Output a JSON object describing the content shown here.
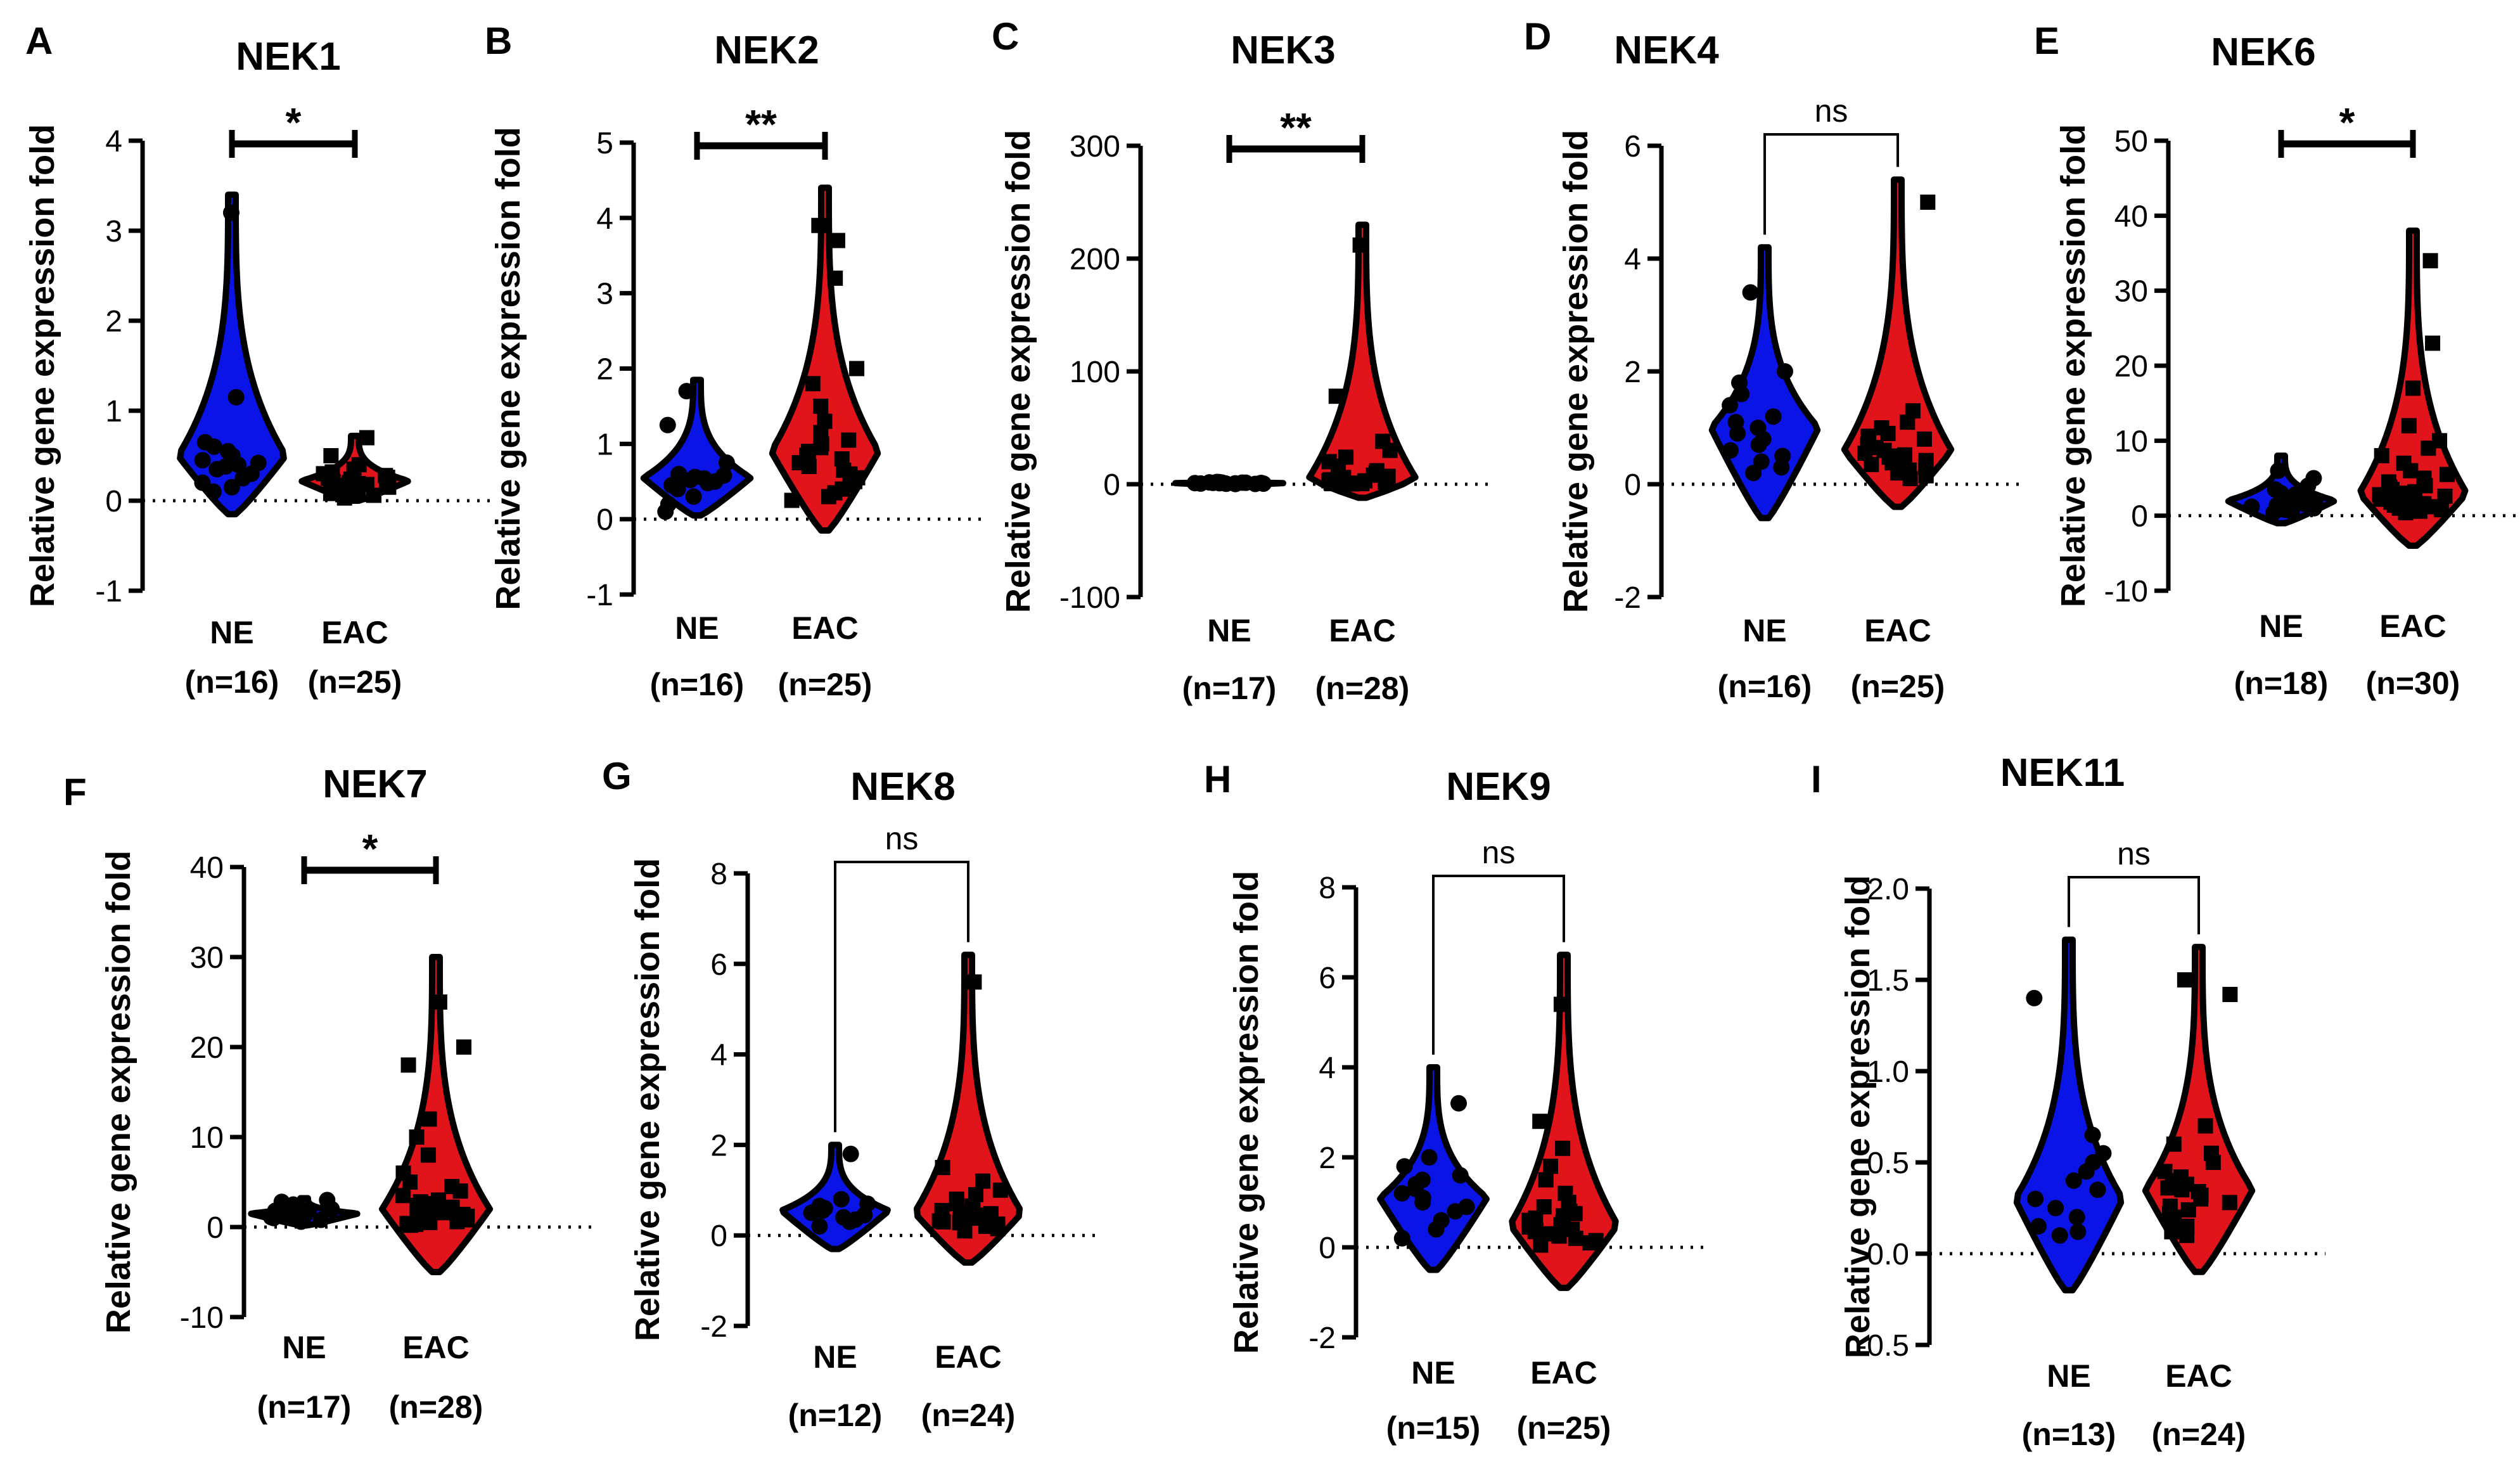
{
  "colors": {
    "ne": "#0a14e6",
    "eac": "#e0141a",
    "ink": "#000000"
  },
  "chart_data": [
    {
      "type": "violin",
      "panel": "A",
      "title": "NEK1",
      "ylabel": "Relative gene expression fold",
      "yticks": [
        -1,
        0,
        1,
        2,
        3,
        4
      ],
      "ylim": [
        -1,
        4
      ],
      "significance": "*",
      "sig_style": "bold",
      "groups": [
        {
          "name": "NE",
          "n_label": "(n=16)",
          "min": -0.15,
          "max": 3.4,
          "peak": 0.5,
          "values": [
            3.2,
            1.15,
            0.65,
            0.6,
            0.55,
            0.5,
            0.45,
            0.42,
            0.4,
            0.38,
            0.35,
            0.3,
            0.25,
            0.2,
            0.15,
            0.1
          ]
        },
        {
          "name": "EAC",
          "n_label": "(n=25)",
          "min": 0.0,
          "max": 0.72,
          "peak": 0.22,
          "values": [
            0.7,
            0.5,
            0.4,
            0.35,
            0.32,
            0.3,
            0.28,
            0.26,
            0.25,
            0.24,
            0.22,
            0.21,
            0.2,
            0.19,
            0.18,
            0.17,
            0.16,
            0.15,
            0.14,
            0.13,
            0.12,
            0.1,
            0.08,
            0.06,
            0.03
          ]
        }
      ]
    },
    {
      "type": "violin",
      "panel": "B",
      "title": "NEK2",
      "ylabel": "Relative gene expression fold",
      "yticks": [
        -1,
        0,
        1,
        2,
        3,
        4,
        5
      ],
      "ylim": [
        -1,
        5
      ],
      "significance": "**",
      "sig_style": "bold",
      "groups": [
        {
          "name": "NE",
          "n_label": "(n=16)",
          "min": 0.05,
          "max": 1.85,
          "peak": 0.55,
          "values": [
            1.7,
            1.25,
            0.75,
            0.6,
            0.58,
            0.56,
            0.55,
            0.54,
            0.52,
            0.5,
            0.48,
            0.45,
            0.4,
            0.3,
            0.2,
            0.1
          ]
        },
        {
          "name": "EAC",
          "n_label": "(n=25)",
          "min": -0.15,
          "max": 4.4,
          "peak": 0.9,
          "values": [
            3.9,
            3.7,
            3.2,
            2.0,
            1.8,
            1.5,
            1.3,
            1.15,
            1.05,
            1.0,
            0.95,
            0.9,
            0.85,
            0.8,
            0.75,
            0.7,
            0.65,
            0.6,
            0.55,
            0.5,
            0.45,
            0.4,
            0.35,
            0.3,
            0.25
          ]
        }
      ]
    },
    {
      "type": "violin",
      "panel": "C",
      "title": "NEK3",
      "ylabel": "Relative gene expression fold",
      "yticks": [
        -100,
        0,
        100,
        200,
        300
      ],
      "ylim": [
        -100,
        300
      ],
      "significance": "**",
      "sig_style": "bold",
      "groups": [
        {
          "name": "NE",
          "n_label": "(n=17)",
          "min": -1,
          "max": 3,
          "peak": 1,
          "values": [
            2,
            1.8,
            1.6,
            1.5,
            1.4,
            1.3,
            1.2,
            1.1,
            1.0,
            0.9,
            0.8,
            0.7,
            0.6,
            0.5,
            0.4,
            0.3,
            0.2
          ]
        },
        {
          "name": "EAC",
          "n_label": "(n=28)",
          "min": -12,
          "max": 230,
          "peak": 5,
          "values": [
            212,
            78,
            38,
            30,
            24,
            20,
            16,
            12,
            10,
            8,
            7,
            6,
            5,
            5,
            4,
            4,
            3,
            3,
            2,
            2,
            2,
            1,
            1,
            1,
            0.5,
            0.5,
            0.3,
            0.2
          ]
        }
      ]
    },
    {
      "type": "violin",
      "panel": "D",
      "title": "NEK4",
      "ylabel": "Relative gene expression fold",
      "yticks": [
        -2,
        0,
        2,
        4,
        6
      ],
      "ylim": [
        -2,
        6
      ],
      "significance": "ns",
      "sig_style": "thin",
      "groups": [
        {
          "name": "NE",
          "n_label": "(n=16)",
          "min": -0.6,
          "max": 4.2,
          "peak": 1.0,
          "values": [
            3.4,
            2.0,
            1.8,
            1.6,
            1.4,
            1.2,
            1.1,
            1.0,
            0.9,
            0.8,
            0.7,
            0.6,
            0.5,
            0.4,
            0.3,
            0.2
          ]
        },
        {
          "name": "EAC",
          "n_label": "(n=25)",
          "min": -0.4,
          "max": 5.4,
          "peak": 0.6,
          "values": [
            5.0,
            1.3,
            1.1,
            1.0,
            0.9,
            0.85,
            0.8,
            0.75,
            0.7,
            0.65,
            0.6,
            0.55,
            0.52,
            0.5,
            0.48,
            0.45,
            0.42,
            0.4,
            0.38,
            0.35,
            0.3,
            0.25,
            0.2,
            0.15,
            0.1
          ]
        }
      ]
    },
    {
      "type": "violin",
      "panel": "E",
      "title": "NEK6",
      "ylabel": "Relative gene expression fold",
      "yticks": [
        -10,
        0,
        10,
        20,
        30,
        40,
        50
      ],
      "ylim": [
        -10,
        50
      ],
      "significance": "*",
      "sig_style": "bold",
      "groups": [
        {
          "name": "NE",
          "n_label": "(n=18)",
          "min": -1,
          "max": 8,
          "peak": 2,
          "values": [
            6,
            5,
            4,
            3.5,
            3,
            2.8,
            2.6,
            2.4,
            2.2,
            2,
            1.8,
            1.6,
            1.4,
            1.2,
            1,
            0.8,
            0.6,
            0.4
          ]
        },
        {
          "name": "EAC",
          "n_label": "(n=30)",
          "min": -4,
          "max": 38,
          "peak": 3,
          "values": [
            34,
            23,
            17,
            12,
            10,
            9,
            8,
            7,
            6,
            5.5,
            5,
            4.5,
            4,
            3.8,
            3.5,
            3.2,
            3,
            2.8,
            2.6,
            2.4,
            2.2,
            2,
            1.8,
            1.6,
            1.4,
            1.2,
            1,
            0.8,
            0.6,
            0.4
          ]
        }
      ]
    },
    {
      "type": "violin",
      "panel": "F",
      "title": "NEK7",
      "ylabel": "Relative gene expression fold",
      "yticks": [
        -10,
        0,
        10,
        20,
        30,
        40
      ],
      "ylim": [
        -10,
        40
      ],
      "significance": "*",
      "sig_style": "bold",
      "groups": [
        {
          "name": "NE",
          "n_label": "(n=17)",
          "min": 0.2,
          "max": 3.2,
          "peak": 1.5,
          "values": [
            3,
            2.8,
            2.5,
            2.2,
            2,
            1.9,
            1.8,
            1.7,
            1.6,
            1.5,
            1.4,
            1.3,
            1.2,
            1.1,
            1,
            0.8,
            0.6
          ]
        },
        {
          "name": "EAC",
          "n_label": "(n=28)",
          "min": -5,
          "max": 30,
          "peak": 2,
          "values": [
            25,
            20,
            18,
            12,
            10,
            8,
            6,
            5,
            4.5,
            4,
            3.5,
            3,
            2.8,
            2.6,
            2.4,
            2.2,
            2,
            1.8,
            1.6,
            1.4,
            1.2,
            1,
            0.8,
            0.6,
            0.5,
            0.4,
            0.3,
            0.2
          ]
        }
      ]
    },
    {
      "type": "violin",
      "panel": "G",
      "title": "NEK8",
      "ylabel": "Relative gene expression fold",
      "yticks": [
        -2,
        0,
        2,
        4,
        6,
        8
      ],
      "ylim": [
        -2,
        8
      ],
      "significance": "ns",
      "sig_style": "thin",
      "groups": [
        {
          "name": "NE",
          "n_label": "(n=12)",
          "min": -0.3,
          "max": 2.0,
          "peak": 0.55,
          "values": [
            1.8,
            0.8,
            0.7,
            0.65,
            0.6,
            0.55,
            0.5,
            0.45,
            0.4,
            0.35,
            0.3,
            0.2
          ]
        },
        {
          "name": "EAC",
          "n_label": "(n=24)",
          "min": -0.6,
          "max": 6.2,
          "peak": 0.5,
          "values": [
            5.6,
            1.5,
            1.2,
            1.0,
            0.9,
            0.8,
            0.7,
            0.65,
            0.6,
            0.55,
            0.5,
            0.48,
            0.45,
            0.42,
            0.4,
            0.38,
            0.35,
            0.32,
            0.3,
            0.28,
            0.25,
            0.2,
            0.15,
            0.1
          ]
        }
      ]
    },
    {
      "type": "violin",
      "panel": "H",
      "title": "NEK9",
      "ylabel": "Relative gene expression fold",
      "yticks": [
        -2,
        0,
        2,
        4,
        6,
        8
      ],
      "ylim": [
        -2,
        8
      ],
      "significance": "ns",
      "sig_style": "thin",
      "groups": [
        {
          "name": "NE",
          "n_label": "(n=15)",
          "min": -0.5,
          "max": 4.0,
          "peak": 1.1,
          "values": [
            3.2,
            2.0,
            1.8,
            1.6,
            1.5,
            1.4,
            1.3,
            1.2,
            1.1,
            1.0,
            0.9,
            0.8,
            0.6,
            0.4,
            0.2
          ]
        },
        {
          "name": "EAC",
          "n_label": "(n=25)",
          "min": -0.9,
          "max": 6.5,
          "peak": 0.5,
          "values": [
            5.4,
            2.8,
            2.2,
            1.8,
            1.5,
            1.2,
            1.0,
            0.9,
            0.8,
            0.75,
            0.7,
            0.65,
            0.6,
            0.55,
            0.5,
            0.45,
            0.4,
            0.38,
            0.35,
            0.3,
            0.25,
            0.2,
            0.15,
            0.1,
            0.05
          ]
        }
      ]
    },
    {
      "type": "violin",
      "panel": "I",
      "title": "NEK11",
      "ylabel": "Relative gene expression fold",
      "yticks": [
        -0.5,
        0.0,
        0.5,
        1.0,
        1.5,
        2.0
      ],
      "ylim": [
        -0.5,
        2.0
      ],
      "significance": "ns",
      "sig_style": "thin",
      "groups": [
        {
          "name": "NE",
          "n_label": "(n=13)",
          "min": -0.2,
          "max": 1.72,
          "peak": 0.3,
          "values": [
            1.4,
            0.65,
            0.55,
            0.5,
            0.45,
            0.4,
            0.35,
            0.3,
            0.25,
            0.2,
            0.15,
            0.12,
            0.1
          ]
        },
        {
          "name": "EAC",
          "n_label": "(n=24)",
          "min": -0.1,
          "max": 1.68,
          "peak": 0.35,
          "values": [
            1.5,
            1.42,
            0.7,
            0.6,
            0.55,
            0.5,
            0.45,
            0.42,
            0.4,
            0.38,
            0.36,
            0.35,
            0.34,
            0.32,
            0.3,
            0.28,
            0.26,
            0.24,
            0.22,
            0.2,
            0.18,
            0.15,
            0.12,
            0.1
          ]
        }
      ]
    }
  ]
}
